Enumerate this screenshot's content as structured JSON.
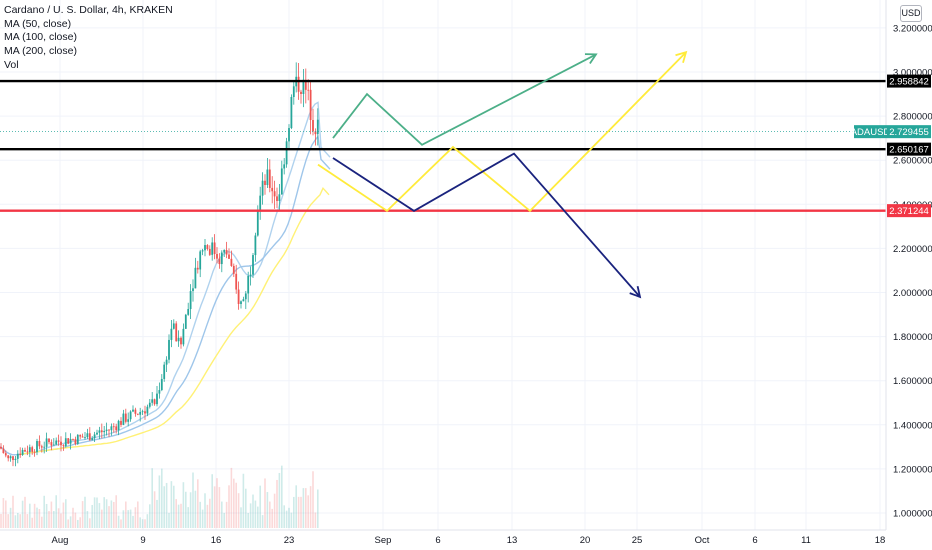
{
  "header": {
    "symbol_line": "Cardano / U. S. Dollar, 4h, KRAKEN",
    "indicators": [
      "MA (50, close)",
      "MA (100, close)",
      "MA (200, close)",
      "Vol"
    ],
    "currency_button": "USD"
  },
  "price_axis": {
    "ticks": [
      "3.200000",
      "3.000000",
      "2.800000",
      "2.600000",
      "2.400000",
      "2.200000",
      "2.000000",
      "1.800000",
      "1.600000",
      "1.400000",
      "1.200000",
      "1.000000"
    ],
    "tick_values": [
      3.2,
      3.0,
      2.8,
      2.6,
      2.4,
      2.2,
      2.0,
      1.8,
      1.6,
      1.4,
      1.2,
      1.0
    ]
  },
  "time_axis": {
    "labels": [
      "Aug",
      "9",
      "16",
      "23",
      "Sep",
      "6",
      "13",
      "20",
      "25",
      "Oct",
      "6",
      "11",
      "18"
    ]
  },
  "levels": [
    {
      "label": "2.958842",
      "value": 2.958842,
      "color": "#000000"
    },
    {
      "label": "2.650167",
      "value": 2.650167,
      "color": "#000000"
    },
    {
      "label": "2.371244",
      "value": 2.371244,
      "color": "#f23645"
    }
  ],
  "current_price": {
    "symbol": "ADAUSD",
    "value": "2.729455",
    "color": "#26a69a"
  },
  "colors": {
    "up": "#26a69a",
    "down": "#ef5350",
    "ma50": "#b0d2ee",
    "ma100": "#9fc6ea",
    "ma200": "#fff176",
    "scenario_green": "#4caf88",
    "scenario_yellow": "#ffeb3b",
    "scenario_navy": "#1a237e"
  },
  "chart_data": {
    "type": "candlestick",
    "instrument": "Cardano / U. S. Dollar, 4h, KRAKEN",
    "yrange": [
      0.92,
      3.28
    ],
    "close_path": [
      [
        0,
        1.3
      ],
      [
        8,
        1.24
      ],
      [
        20,
        1.28
      ],
      [
        35,
        1.3
      ],
      [
        50,
        1.32
      ],
      [
        65,
        1.33
      ],
      [
        80,
        1.34
      ],
      [
        95,
        1.36
      ],
      [
        110,
        1.38
      ],
      [
        125,
        1.43
      ],
      [
        140,
        1.46
      ],
      [
        155,
        1.5
      ],
      [
        165,
        1.68
      ],
      [
        172,
        1.86
      ],
      [
        180,
        1.74
      ],
      [
        188,
        1.96
      ],
      [
        195,
        2.1
      ],
      [
        203,
        2.22
      ],
      [
        212,
        2.2
      ],
      [
        220,
        2.16
      ],
      [
        228,
        2.18
      ],
      [
        236,
        2.0
      ],
      [
        242,
        1.94
      ],
      [
        250,
        2.1
      ],
      [
        258,
        2.4
      ],
      [
        266,
        2.52
      ],
      [
        272,
        2.48
      ],
      [
        278,
        2.42
      ],
      [
        286,
        2.68
      ],
      [
        293,
        2.92
      ],
      [
        300,
        2.96
      ],
      [
        307,
        2.9
      ],
      [
        313,
        2.78
      ],
      [
        320,
        2.73
      ]
    ],
    "scenarios": [
      {
        "color": "green",
        "points": [
          [
            2.7,
            333
          ],
          [
            2.9,
            367
          ],
          [
            2.67,
            422
          ],
          [
            3.08,
            596
          ]
        ]
      },
      {
        "color": "yellow",
        "points": [
          [
            2.58,
            318
          ],
          [
            2.37,
            387
          ],
          [
            2.66,
            453
          ],
          [
            2.37,
            530
          ],
          [
            3.09,
            686
          ]
        ]
      },
      {
        "color": "navy",
        "points": [
          [
            2.61,
            333
          ],
          [
            2.37,
            414
          ],
          [
            2.63,
            514
          ],
          [
            1.98,
            640
          ]
        ]
      }
    ]
  }
}
